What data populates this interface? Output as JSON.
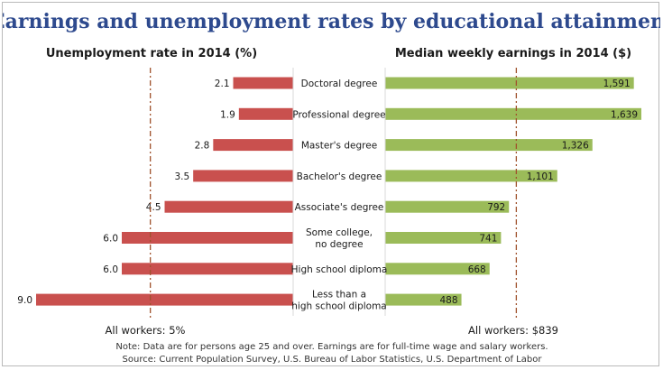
{
  "title": "Earnings and unemployment rates by educational attainment",
  "notes": [
    "Note: Data are for persons age 25 and over. Earnings are for full-time wage and salary workers.",
    "Source: Current Population Survey, U.S. Bureau of Labor Statistics, U.S. Department of Labor"
  ],
  "colors": {
    "title": "#2e4a8e",
    "unemployment_bar": "#c9504e",
    "earnings_bar": "#9bbb59",
    "reference_line": "#a0522d"
  },
  "chart_data": [
    {
      "type": "bar",
      "orientation": "horizontal",
      "direction": "leftward",
      "title": "Unemployment rate in 2014 (%)",
      "categories": [
        "Doctoral degree",
        "Professional degree",
        "Master's degree",
        "Bachelor's degree",
        "Associate's degree",
        "Some college, no degree",
        "High school diploma",
        "Less than a high school diploma"
      ],
      "values": [
        2.1,
        1.9,
        2.8,
        3.5,
        4.5,
        6.0,
        6.0,
        9.0
      ],
      "value_labels": [
        "2.1",
        "1.9",
        "2.8",
        "3.5",
        "4.5",
        "6.0",
        "6.0",
        "9.0"
      ],
      "xlim": [
        0,
        9.0
      ],
      "reference": {
        "value": 5,
        "label": "All workers: 5%"
      }
    },
    {
      "type": "bar",
      "orientation": "horizontal",
      "direction": "rightward",
      "title": "Median weekly earnings in 2014 ($)",
      "categories": [
        "Doctoral degree",
        "Professional degree",
        "Master's degree",
        "Bachelor's degree",
        "Associate's degree",
        "Some college, no degree",
        "High school diploma",
        "Less than a high school diploma"
      ],
      "values": [
        1591,
        1639,
        1326,
        1101,
        792,
        741,
        668,
        488
      ],
      "value_labels": [
        "1,591",
        "1,639",
        "1,326",
        "1,101",
        "792",
        "741",
        "668",
        "488"
      ],
      "xlim": [
        0,
        1639
      ],
      "reference": {
        "value": 839,
        "label": "All workers: $839"
      }
    }
  ]
}
